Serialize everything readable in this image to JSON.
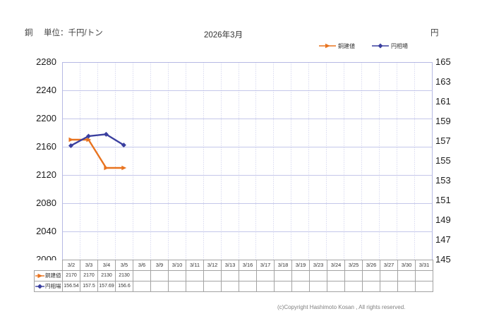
{
  "header": {
    "metal": "銅",
    "unit_label": "単位：千円/トン",
    "right_axis_unit": "円"
  },
  "footer": {
    "copyright": "(c)Copyright Hashimoto Kosan , All rights reserved."
  },
  "chart_data": {
    "type": "line",
    "title": "2026年3月",
    "categories": [
      "3/2",
      "3/3",
      "3/4",
      "3/5",
      "3/6",
      "3/9",
      "3/10",
      "3/11",
      "3/12",
      "3/13",
      "3/16",
      "3/17",
      "3/18",
      "3/19",
      "3/23",
      "3/24",
      "3/25",
      "3/26",
      "3/27",
      "3/30",
      "3/31"
    ],
    "series": [
      {
        "name": "銅建値",
        "axis": "left",
        "color": "#e8731f",
        "marker": "triangle",
        "values": [
          2170,
          2170,
          2130,
          2130,
          null,
          null,
          null,
          null,
          null,
          null,
          null,
          null,
          null,
          null,
          null,
          null,
          null,
          null,
          null,
          null,
          null
        ]
      },
      {
        "name": "円相場",
        "axis": "right",
        "color": "#3a3f9f",
        "marker": "diamond",
        "values": [
          156.54,
          157.5,
          157.69,
          156.6,
          null,
          null,
          null,
          null,
          null,
          null,
          null,
          null,
          null,
          null,
          null,
          null,
          null,
          null,
          null,
          null,
          null
        ]
      }
    ],
    "left_axis": {
      "min": 2000,
      "max": 2280,
      "step": 40,
      "ticks": [
        2280,
        2240,
        2200,
        2160,
        2120,
        2080,
        2040,
        2000
      ]
    },
    "right_axis": {
      "min": 145,
      "max": 165,
      "step": 2,
      "ticks": [
        165,
        163,
        161,
        159,
        157,
        155,
        153,
        151,
        149,
        147,
        145
      ]
    },
    "grid": true,
    "legend_position": "top-right",
    "grid_color": "#c4c7ea",
    "border_color": "#b6b9e4"
  }
}
